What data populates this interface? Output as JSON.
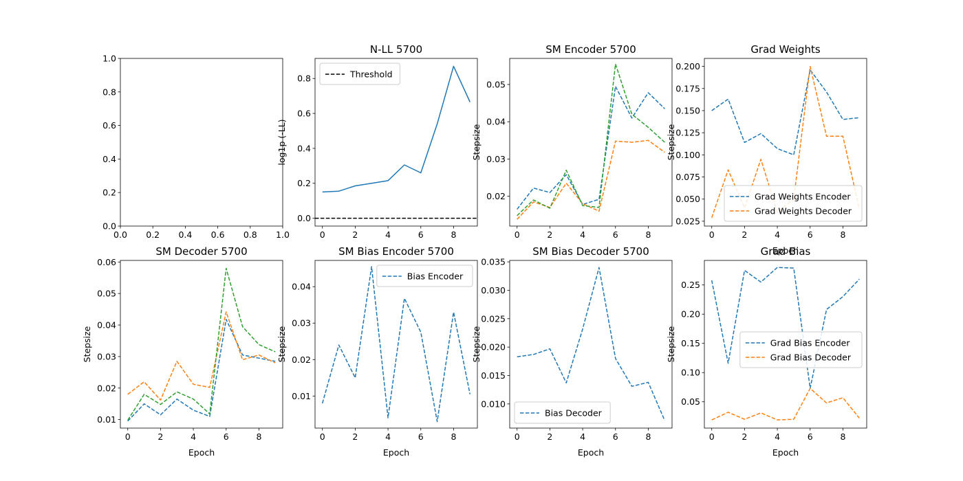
{
  "colors": {
    "C0": "#1f77b4",
    "C1": "#ff7f0e",
    "C2": "#2ca02c",
    "threshold": "#000000"
  },
  "chart_data": [
    {
      "type": "line",
      "title": "",
      "xlabel": "",
      "ylabel": "",
      "xlim": [
        0,
        1
      ],
      "ylim": [
        0,
        1
      ],
      "xticks": [
        "0.0",
        "0.2",
        "0.4",
        "0.6",
        "0.8",
        "1.0"
      ],
      "yticks": [
        "0.0",
        "0.2",
        "0.4",
        "0.6",
        "0.8",
        "1.0"
      ],
      "series": []
    },
    {
      "type": "line",
      "title": "N-LL 5700",
      "xlabel": "",
      "ylabel": "log1p (-LL)",
      "xlim": [
        -0.45,
        9.45
      ],
      "ylim": [
        -0.045,
        0.915
      ],
      "xticks": [
        "0",
        "2",
        "4",
        "6",
        "8"
      ],
      "yticks": [
        "0.0",
        "0.2",
        "0.4",
        "0.6",
        "0.8"
      ],
      "legend": "top-left",
      "series": [
        {
          "name": "",
          "color": "C0",
          "style": "solid",
          "x": [
            0,
            1,
            2,
            3,
            4,
            5,
            6,
            7,
            8,
            9
          ],
          "y": [
            0.15,
            0.155,
            0.185,
            0.2,
            0.215,
            0.305,
            0.26,
            0.54,
            0.87,
            0.665
          ]
        },
        {
          "name": "Threshold",
          "color": "threshold",
          "style": "dashed",
          "x": [
            -0.45,
            9.45
          ],
          "y": [
            0.0,
            0.0
          ]
        }
      ]
    },
    {
      "type": "line",
      "title": "SM Encoder 5700",
      "xlabel": "",
      "ylabel": "Stepsize",
      "xlim": [
        -0.45,
        9.45
      ],
      "ylim": [
        0.012,
        0.057
      ],
      "xticks": [
        "0",
        "2",
        "4",
        "6",
        "8"
      ],
      "yticks": [
        "0.02",
        "0.03",
        "0.04",
        "0.05"
      ],
      "series": [
        {
          "name": "",
          "color": "C0",
          "style": "dashed",
          "x": [
            0,
            1,
            2,
            3,
            4,
            5,
            6,
            7,
            8,
            9
          ],
          "y": [
            0.0165,
            0.0222,
            0.021,
            0.0258,
            0.0178,
            0.0192,
            0.0495,
            0.041,
            0.0478,
            0.0435
          ]
        },
        {
          "name": "",
          "color": "C1",
          "style": "dashed",
          "x": [
            0,
            1,
            2,
            3,
            4,
            5,
            6,
            7,
            8,
            9
          ],
          "y": [
            0.0138,
            0.0185,
            0.017,
            0.0235,
            0.018,
            0.016,
            0.0348,
            0.0345,
            0.035,
            0.0318
          ]
        },
        {
          "name": "",
          "color": "C2",
          "style": "dashed",
          "x": [
            0,
            1,
            2,
            3,
            4,
            5,
            6,
            7,
            8,
            9
          ],
          "y": [
            0.0148,
            0.019,
            0.0168,
            0.027,
            0.0175,
            0.017,
            0.0555,
            0.042,
            0.0385,
            0.0345
          ]
        }
      ]
    },
    {
      "type": "line",
      "title": "Grad Weights",
      "xlabel": "Epoch",
      "ylabel": "Stepsize",
      "xlim": [
        -0.45,
        9.45
      ],
      "ylim": [
        0.0195,
        0.209
      ],
      "xticks": [
        "0",
        "2",
        "4",
        "6",
        "8"
      ],
      "yticks": [
        "0.025",
        "0.050",
        "0.075",
        "0.100",
        "0.125",
        "0.150",
        "0.175",
        "0.200"
      ],
      "legend": "lower-right",
      "series": [
        {
          "name": "Grad Weights Encoder",
          "color": "C0",
          "style": "dashed",
          "x": [
            0,
            1,
            2,
            3,
            4,
            5,
            6,
            7,
            8,
            9
          ],
          "y": [
            0.15,
            0.163,
            0.114,
            0.124,
            0.107,
            0.1,
            0.196,
            0.171,
            0.14,
            0.142
          ]
        },
        {
          "name": "Grad Weights Decoder",
          "color": "C1",
          "style": "dashed",
          "x": [
            0,
            1,
            2,
            3,
            4,
            5,
            6,
            7,
            8,
            9
          ],
          "y": [
            0.029,
            0.083,
            0.04,
            0.095,
            0.035,
            0.05,
            0.2,
            0.121,
            0.121,
            0.039
          ]
        }
      ]
    },
    {
      "type": "line",
      "title": "SM Decoder 5700",
      "xlabel": "Epoch",
      "ylabel": "Stepsize",
      "xlim": [
        -0.45,
        9.45
      ],
      "ylim": [
        0.0073,
        0.0605
      ],
      "xticks": [
        "0",
        "2",
        "4",
        "6",
        "8"
      ],
      "yticks": [
        "0.01",
        "0.02",
        "0.03",
        "0.04",
        "0.05",
        "0.06"
      ],
      "series": [
        {
          "name": "",
          "color": "C0",
          "style": "dashed",
          "x": [
            0,
            1,
            2,
            3,
            4,
            5,
            6,
            7,
            8,
            9
          ],
          "y": [
            0.0095,
            0.015,
            0.0115,
            0.0165,
            0.013,
            0.011,
            0.0418,
            0.0305,
            0.0295,
            0.0285
          ]
        },
        {
          "name": "",
          "color": "C1",
          "style": "dashed",
          "x": [
            0,
            1,
            2,
            3,
            4,
            5,
            6,
            7,
            8,
            9
          ],
          "y": [
            0.018,
            0.022,
            0.0162,
            0.0285,
            0.0212,
            0.0202,
            0.0442,
            0.029,
            0.0305,
            0.028
          ]
        },
        {
          "name": "",
          "color": "C2",
          "style": "dashed",
          "x": [
            0,
            1,
            2,
            3,
            4,
            5,
            6,
            7,
            8,
            9
          ],
          "y": [
            0.0098,
            0.018,
            0.0148,
            0.0188,
            0.0165,
            0.0118,
            0.058,
            0.0395,
            0.0338,
            0.0315
          ]
        }
      ]
    },
    {
      "type": "line",
      "title": "SM Bias Encoder 5700",
      "xlabel": "Epoch",
      "ylabel": "Stepsize",
      "xlim": [
        -0.45,
        9.45
      ],
      "ylim": [
        0.0012,
        0.0472
      ],
      "xticks": [
        "0",
        "2",
        "4",
        "6",
        "8"
      ],
      "yticks": [
        "0.01",
        "0.02",
        "0.03",
        "0.04"
      ],
      "legend": "top-right",
      "series": [
        {
          "name": "Bias Encoder",
          "color": "C0",
          "style": "dashed",
          "x": [
            0,
            1,
            2,
            3,
            4,
            5,
            6,
            7,
            8,
            9
          ],
          "y": [
            0.008,
            0.024,
            0.015,
            0.0455,
            0.004,
            0.0368,
            0.0275,
            0.003,
            0.033,
            0.0105
          ]
        }
      ]
    },
    {
      "type": "line",
      "title": "SM Bias Decoder 5700",
      "xlabel": "Epoch",
      "ylabel": "Stepsize",
      "xlim": [
        -0.45,
        9.45
      ],
      "ylim": [
        0.00575,
        0.03525
      ],
      "xticks": [
        "0",
        "2",
        "4",
        "6",
        "8"
      ],
      "yticks": [
        "0.010",
        "0.015",
        "0.020",
        "0.025",
        "0.030",
        "0.035"
      ],
      "legend": "lower-left",
      "series": [
        {
          "name": "Bias Decoder",
          "color": "C0",
          "style": "dashed",
          "x": [
            0,
            1,
            2,
            3,
            4,
            5,
            6,
            7,
            8,
            9
          ],
          "y": [
            0.0183,
            0.0187,
            0.0197,
            0.0137,
            0.0232,
            0.034,
            0.018,
            0.0131,
            0.0138,
            0.0071
          ]
        }
      ]
    },
    {
      "type": "line",
      "title": "Grad Bias",
      "xlabel": "Epoch",
      "ylabel": "Stepsize",
      "xlim": [
        -0.45,
        9.45
      ],
      "ylim": [
        0.005,
        0.292
      ],
      "xticks": [
        "0",
        "2",
        "4",
        "6",
        "8"
      ],
      "yticks": [
        "0.05",
        "0.10",
        "0.15",
        "0.20",
        "0.25"
      ],
      "legend": "center-right",
      "series": [
        {
          "name": "Grad Bias Encoder",
          "color": "C0",
          "style": "dashed",
          "x": [
            0,
            1,
            2,
            3,
            4,
            5,
            6,
            7,
            8,
            9
          ],
          "y": [
            0.258,
            0.116,
            0.275,
            0.255,
            0.28,
            0.279,
            0.073,
            0.208,
            0.23,
            0.26
          ]
        },
        {
          "name": "Grad Bias Decoder",
          "color": "C1",
          "style": "dashed",
          "x": [
            0,
            1,
            2,
            3,
            4,
            5,
            6,
            7,
            8,
            9
          ],
          "y": [
            0.019,
            0.032,
            0.02,
            0.031,
            0.019,
            0.02,
            0.073,
            0.048,
            0.057,
            0.022
          ]
        }
      ]
    }
  ]
}
